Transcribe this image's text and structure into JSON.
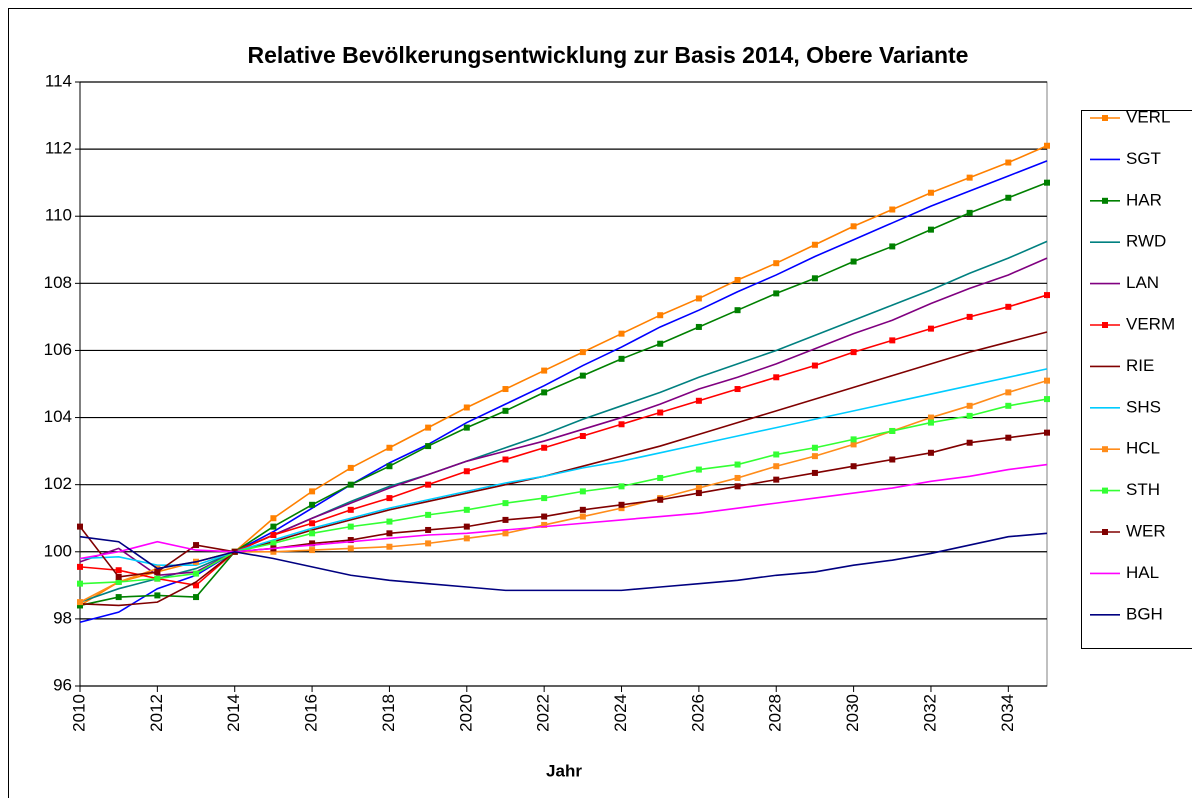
{
  "chart_data": {
    "type": "line",
    "title": "Relative Bevölkerungsentwicklung zur Basis 2014, Obere Variante",
    "x_label": "Jahr",
    "x": [
      2010,
      2011,
      2012,
      2013,
      2014,
      2015,
      2016,
      2017,
      2018,
      2019,
      2020,
      2021,
      2022,
      2023,
      2024,
      2025,
      2026,
      2027,
      2028,
      2029,
      2030,
      2031,
      2032,
      2033,
      2034,
      2035
    ],
    "xlim": [
      2010,
      2035
    ],
    "xticks": [
      2010,
      2012,
      2014,
      2016,
      2018,
      2020,
      2022,
      2024,
      2026,
      2028,
      2030,
      2032,
      2034
    ],
    "ylim": [
      96,
      114
    ],
    "yticks": [
      96,
      98,
      100,
      102,
      104,
      106,
      108,
      110,
      112,
      114
    ],
    "grid": true,
    "legend": "right",
    "series": [
      {
        "name": "VERL",
        "color": "#ff8000",
        "markers": true,
        "values": [
          98.4,
          99.1,
          99.4,
          99.7,
          100,
          101.0,
          101.8,
          102.5,
          103.1,
          103.7,
          104.3,
          104.85,
          105.4,
          105.95,
          106.5,
          107.05,
          107.55,
          108.1,
          108.6,
          109.15,
          109.7,
          110.2,
          110.7,
          111.15,
          111.6,
          112.1
        ]
      },
      {
        "name": "SGT",
        "color": "#0000ff",
        "markers": false,
        "values": [
          97.9,
          98.2,
          98.9,
          99.3,
          100,
          100.6,
          101.3,
          102.0,
          102.65,
          103.2,
          103.85,
          104.4,
          104.95,
          105.55,
          106.1,
          106.7,
          107.2,
          107.75,
          108.25,
          108.8,
          109.3,
          109.8,
          110.3,
          110.75,
          111.2,
          111.65
        ]
      },
      {
        "name": "HAR",
        "color": "#008000",
        "markers": true,
        "values": [
          98.4,
          98.65,
          98.7,
          98.65,
          100,
          100.75,
          101.4,
          102.0,
          102.55,
          103.15,
          103.7,
          104.2,
          104.75,
          105.25,
          105.75,
          106.2,
          106.7,
          107.2,
          107.7,
          108.15,
          108.65,
          109.1,
          109.6,
          110.1,
          110.55,
          111.0
        ]
      },
      {
        "name": "RWD",
        "color": "#008080",
        "markers": false,
        "values": [
          98.5,
          98.9,
          99.2,
          99.5,
          100,
          100.5,
          101.0,
          101.5,
          101.95,
          102.3,
          102.7,
          103.1,
          103.5,
          103.95,
          104.35,
          104.75,
          105.2,
          105.6,
          106.0,
          106.45,
          106.9,
          107.35,
          107.8,
          108.3,
          108.75,
          109.25
        ]
      },
      {
        "name": "LAN",
        "color": "#800080",
        "markers": false,
        "values": [
          99.7,
          100.1,
          99.3,
          99.4,
          100,
          100.5,
          101.0,
          101.45,
          101.9,
          102.3,
          102.7,
          103.0,
          103.3,
          103.65,
          104.0,
          104.4,
          104.85,
          105.2,
          105.6,
          106.05,
          106.5,
          106.9,
          107.4,
          107.85,
          108.25,
          108.75
        ]
      },
      {
        "name": "VERM",
        "color": "#ff0000",
        "markers": true,
        "values": [
          99.55,
          99.45,
          99.2,
          99.0,
          100,
          100.5,
          100.85,
          101.25,
          101.6,
          102.0,
          102.4,
          102.75,
          103.1,
          103.45,
          103.8,
          104.15,
          104.5,
          104.85,
          105.2,
          105.55,
          105.95,
          106.3,
          106.65,
          107.0,
          107.3,
          107.65
        ]
      },
      {
        "name": "RIE",
        "color": "#800000",
        "markers": false,
        "values": [
          98.45,
          98.4,
          98.5,
          99.1,
          100,
          100.3,
          100.65,
          100.95,
          101.25,
          101.5,
          101.75,
          102.0,
          102.25,
          102.55,
          102.85,
          103.15,
          103.5,
          103.85,
          104.2,
          104.55,
          104.9,
          105.25,
          105.6,
          105.95,
          106.25,
          106.55
        ]
      },
      {
        "name": "SHS",
        "color": "#00ccff",
        "markers": false,
        "values": [
          99.8,
          99.85,
          99.6,
          99.6,
          100,
          100.35,
          100.7,
          101.0,
          101.3,
          101.55,
          101.8,
          102.05,
          102.25,
          102.5,
          102.7,
          102.95,
          103.2,
          103.45,
          103.7,
          103.95,
          104.2,
          104.45,
          104.7,
          104.95,
          105.2,
          105.45
        ]
      },
      {
        "name": "HCL",
        "color": "#ff8c1a",
        "markers": true,
        "values": [
          98.5,
          99.1,
          99.5,
          99.7,
          100,
          100.0,
          100.05,
          100.1,
          100.15,
          100.25,
          100.4,
          100.55,
          100.8,
          101.05,
          101.3,
          101.6,
          101.9,
          102.2,
          102.55,
          102.85,
          103.2,
          103.6,
          104.0,
          104.35,
          104.75,
          105.1
        ]
      },
      {
        "name": "STH",
        "color": "#33ff33",
        "markers": true,
        "values": [
          99.05,
          99.1,
          99.2,
          99.35,
          100,
          100.25,
          100.55,
          100.75,
          100.9,
          101.1,
          101.25,
          101.45,
          101.6,
          101.8,
          101.95,
          102.2,
          102.45,
          102.6,
          102.9,
          103.1,
          103.35,
          103.6,
          103.85,
          104.05,
          104.35,
          104.55
        ]
      },
      {
        "name": "WER",
        "color": "#800000",
        "markers": true,
        "values": [
          100.75,
          99.25,
          99.4,
          100.2,
          100,
          100.1,
          100.25,
          100.35,
          100.55,
          100.65,
          100.75,
          100.95,
          101.05,
          101.25,
          101.4,
          101.55,
          101.75,
          101.95,
          102.15,
          102.35,
          102.55,
          102.75,
          102.95,
          103.25,
          103.4,
          103.55
        ]
      },
      {
        "name": "HAL",
        "color": "#ff00ff",
        "markers": false,
        "values": [
          99.8,
          100.0,
          100.3,
          100.05,
          100,
          100.1,
          100.2,
          100.3,
          100.4,
          100.5,
          100.55,
          100.65,
          100.75,
          100.85,
          100.95,
          101.05,
          101.15,
          101.3,
          101.45,
          101.6,
          101.75,
          101.9,
          102.1,
          102.25,
          102.45,
          102.6
        ]
      },
      {
        "name": "BGH",
        "color": "#000080",
        "markers": false,
        "values": [
          100.45,
          100.3,
          99.5,
          99.7,
          100,
          99.8,
          99.55,
          99.3,
          99.15,
          99.05,
          98.95,
          98.85,
          98.85,
          98.85,
          98.85,
          98.95,
          99.05,
          99.15,
          99.3,
          99.4,
          99.6,
          99.75,
          99.95,
          100.2,
          100.45,
          100.55
        ]
      }
    ]
  }
}
